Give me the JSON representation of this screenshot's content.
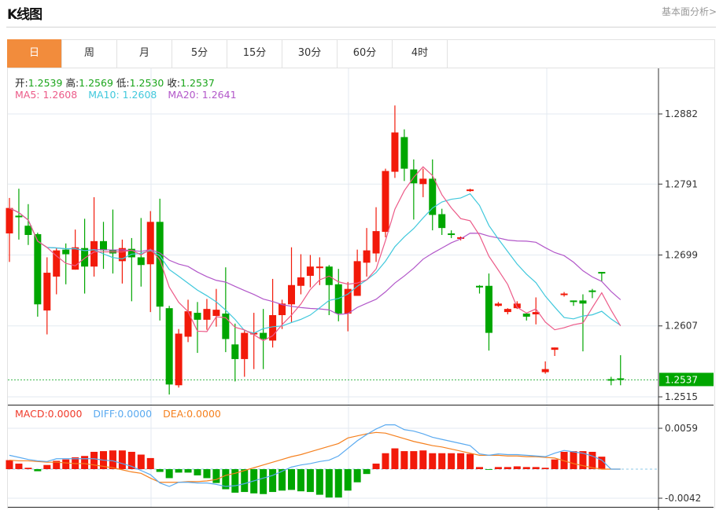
{
  "header": {
    "title": "K线图",
    "link": "基本面分析>"
  },
  "tabs": [
    {
      "label": "日",
      "active": true
    },
    {
      "label": "周"
    },
    {
      "label": "月"
    },
    {
      "label": "5分"
    },
    {
      "label": "15分"
    },
    {
      "label": "30分"
    },
    {
      "label": "60分"
    },
    {
      "label": "4时"
    }
  ],
  "ohlc": {
    "open_label": "开:",
    "open": "1.2539",
    "high_label": "高:",
    "high": "1.2569",
    "low_label": "低:",
    "low": "1.2530",
    "close_label": "收:",
    "close": "1.2537"
  },
  "ma": {
    "ma5": "MA5: 1.2608",
    "ma10": "MA10: 1.2608",
    "ma20": "MA20: 1.2641"
  },
  "macd_legend": {
    "macd": "MACD:0.0000",
    "diff": "DIFF:0.0000",
    "dea": "DEA:0.0000"
  },
  "colors": {
    "up": "#f21a0a",
    "down": "#00a600",
    "ma5": "#ec5a88",
    "ma10": "#40c8dc",
    "ma20": "#b257c9",
    "diff": "#5aaaf0",
    "dea": "#f5801e",
    "active_tab": "#f28c3c"
  },
  "chart_data": {
    "type": "candlestick",
    "price_ticks": [
      "1.2882",
      "1.2791",
      "1.2699",
      "1.2607",
      "1.2515"
    ],
    "last_price": "1.2537",
    "macd_ticks": [
      "0.0059",
      "-0.0042"
    ],
    "candles": [
      [
        1.2727,
        1.2773,
        1.269,
        1.276
      ],
      [
        1.275,
        1.2785,
        1.2719,
        1.2748
      ],
      [
        1.2737,
        1.2765,
        1.2712,
        1.2725
      ],
      [
        1.2726,
        1.2728,
        1.2619,
        1.2635
      ],
      [
        1.2627,
        1.2696,
        1.2596,
        1.2676
      ],
      [
        1.2671,
        1.2708,
        1.2648,
        1.2705
      ],
      [
        1.2706,
        1.2714,
        1.2661,
        1.27
      ],
      [
        1.268,
        1.2732,
        1.268,
        1.2709
      ],
      [
        1.2708,
        1.2746,
        1.2649,
        1.2684
      ],
      [
        1.2684,
        1.2774,
        1.2671,
        1.2717
      ],
      [
        1.2717,
        1.2742,
        1.2681,
        1.2705
      ],
      [
        1.2706,
        1.2758,
        1.2675,
        1.2701
      ],
      [
        1.2691,
        1.2719,
        1.2662,
        1.2708
      ],
      [
        1.2707,
        1.2721,
        1.2639,
        1.2696
      ],
      [
        1.2696,
        1.2747,
        1.2658,
        1.2686
      ],
      [
        1.2687,
        1.2756,
        1.2625,
        1.2742
      ],
      [
        1.2742,
        1.2772,
        1.2614,
        1.2632
      ],
      [
        1.263,
        1.2633,
        1.2518,
        1.2531
      ],
      [
        1.253,
        1.2603,
        1.2527,
        1.2597
      ],
      [
        1.2593,
        1.2641,
        1.2586,
        1.2626
      ],
      [
        1.2624,
        1.2638,
        1.2572,
        1.2615
      ],
      [
        1.2615,
        1.2642,
        1.2602,
        1.2629
      ],
      [
        1.262,
        1.2655,
        1.2606,
        1.2628
      ],
      [
        1.2623,
        1.2683,
        1.2573,
        1.259
      ],
      [
        1.2583,
        1.261,
        1.2535,
        1.2564
      ],
      [
        1.2564,
        1.2602,
        1.2541,
        1.2598
      ],
      [
        1.2597,
        1.2624,
        1.2551,
        1.2598
      ],
      [
        1.2598,
        1.2629,
        1.2551,
        1.259
      ],
      [
        1.2588,
        1.2668,
        1.2579,
        1.2621
      ],
      [
        1.2621,
        1.2641,
        1.2603,
        1.2636
      ],
      [
        1.2635,
        1.2709,
        1.2612,
        1.266
      ],
      [
        1.2659,
        1.27,
        1.2648,
        1.267
      ],
      [
        1.2672,
        1.2699,
        1.2657,
        1.2684
      ],
      [
        1.2682,
        1.2696,
        1.266,
        1.2684
      ],
      [
        1.2684,
        1.2686,
        1.2621,
        1.266
      ],
      [
        1.2661,
        1.2681,
        1.2613,
        1.2623
      ],
      [
        1.2623,
        1.2664,
        1.26,
        1.2655
      ],
      [
        1.2646,
        1.2706,
        1.2646,
        1.2691
      ],
      [
        1.2689,
        1.2734,
        1.2671,
        1.2705
      ],
      [
        1.2701,
        1.2761,
        1.269,
        1.273
      ],
      [
        1.2729,
        1.2811,
        1.2722,
        1.2808
      ],
      [
        1.2807,
        1.2893,
        1.2799,
        1.2858
      ],
      [
        1.2852,
        1.2862,
        1.2795,
        1.2811
      ],
      [
        1.281,
        1.2823,
        1.2745,
        1.2792
      ],
      [
        1.2791,
        1.2811,
        1.2774,
        1.2798
      ],
      [
        1.2798,
        1.2823,
        1.2731,
        1.2751
      ],
      [
        1.2752,
        1.2759,
        1.2725,
        1.2734
      ],
      [
        1.2727,
        1.2731,
        1.2721,
        1.2726
      ],
      [
        1.272,
        1.2723,
        1.2718,
        1.2722
      ],
      [
        1.2782,
        1.2785,
        1.2781,
        1.2784
      ],
      [
        1.2659,
        1.266,
        1.2649,
        1.2657
      ],
      [
        1.2659,
        1.2675,
        1.2575,
        1.2598
      ],
      [
        1.2633,
        1.2638,
        1.2632,
        1.2636
      ],
      [
        1.2625,
        1.263,
        1.2622,
        1.2629
      ],
      [
        1.263,
        1.2639,
        1.2629,
        1.2636
      ],
      [
        1.2623,
        1.2624,
        1.2614,
        1.2619
      ],
      [
        1.2622,
        1.2644,
        1.2609,
        1.2625
      ],
      [
        1.2547,
        1.2561,
        1.2545,
        1.2551
      ],
      [
        1.2576,
        1.2579,
        1.2568,
        1.2579
      ],
      [
        1.2647,
        1.2651,
        1.2645,
        1.2649
      ],
      [
        1.264,
        1.264,
        1.2633,
        1.2639
      ],
      [
        1.264,
        1.2648,
        1.2574,
        1.2636
      ],
      [
        1.2653,
        1.2655,
        1.2643,
        1.2651
      ],
      [
        1.2677,
        1.2677,
        1.2665,
        1.2675
      ],
      [
        1.2538,
        1.2541,
        1.253,
        1.2536
      ],
      [
        1.2539,
        1.2569,
        1.253,
        1.2537
      ]
    ],
    "macd_hist": [
      0.0013,
      0.0008,
      0.0002,
      -0.0003,
      0.0006,
      0.0012,
      0.0014,
      0.0017,
      0.0019,
      0.0025,
      0.0026,
      0.0027,
      0.0027,
      0.0025,
      0.0021,
      0.0016,
      -0.0004,
      -0.0013,
      -0.0005,
      -0.0005,
      -0.0009,
      -0.0013,
      -0.002,
      -0.0029,
      -0.0034,
      -0.0033,
      -0.0035,
      -0.0036,
      -0.0033,
      -0.0031,
      -0.003,
      -0.0032,
      -0.0033,
      -0.0037,
      -0.0041,
      -0.0041,
      -0.0031,
      -0.0019,
      -0.0007,
      0.0008,
      0.0023,
      0.003,
      0.0026,
      0.0026,
      0.0027,
      0.0023,
      0.0023,
      0.0023,
      0.0023,
      0.0022,
      0.0003,
      -0.0001,
      0.0003,
      0.0003,
      0.0004,
      0.0003,
      0.0003,
      0.0002,
      0.0014,
      0.0025,
      0.0026,
      0.0026,
      0.0025,
      0.0018,
      0.0,
      0.0
    ],
    "diff": [
      0.002,
      0.0017,
      0.0014,
      0.0012,
      0.0011,
      0.0015,
      0.0015,
      0.0015,
      0.0015,
      0.0015,
      0.0013,
      0.0012,
      0.0008,
      0.0004,
      -0.0002,
      -0.0008,
      -0.002,
      -0.0025,
      -0.0019,
      -0.0019,
      -0.002,
      -0.002,
      -0.0022,
      -0.0025,
      -0.0024,
      -0.0021,
      -0.0017,
      -0.0013,
      -0.0009,
      -0.0003,
      0.0003,
      0.0006,
      0.0008,
      0.0011,
      0.0013,
      0.0019,
      0.003,
      0.0041,
      0.005,
      0.0058,
      0.0064,
      0.0064,
      0.0057,
      0.0055,
      0.0051,
      0.0046,
      0.0043,
      0.004,
      0.0037,
      0.0034,
      0.0022,
      0.002,
      0.0022,
      0.0021,
      0.0021,
      0.002,
      0.0019,
      0.0018,
      0.0023,
      0.0027,
      0.0025,
      0.0023,
      0.0019,
      0.0013,
      0.0,
      0.0
    ],
    "dea": [
      0.0013,
      0.0012,
      0.0012,
      0.0011,
      0.001,
      0.001,
      0.0009,
      0.0008,
      0.0008,
      0.0006,
      0.0004,
      0.0002,
      -0.0001,
      -0.0004,
      -0.0006,
      -0.0013,
      -0.0019,
      -0.0019,
      -0.0019,
      -0.0018,
      -0.0018,
      -0.0017,
      -0.0015,
      -0.0009,
      -0.0006,
      -0.0002,
      0.0002,
      0.0006,
      0.001,
      0.0014,
      0.0018,
      0.0021,
      0.0025,
      0.0029,
      0.0033,
      0.0037,
      0.0045,
      0.0048,
      0.0051,
      0.0053,
      0.0052,
      0.0048,
      0.0044,
      0.004,
      0.0037,
      0.0034,
      0.0032,
      0.0029,
      0.0026,
      0.0023,
      0.002,
      0.002,
      0.002,
      0.0019,
      0.0019,
      0.0018,
      0.0018,
      0.0017,
      0.0016,
      0.0012,
      0.0008,
      0.0005,
      0.0002,
      0.0,
      0.0,
      0.0
    ]
  }
}
